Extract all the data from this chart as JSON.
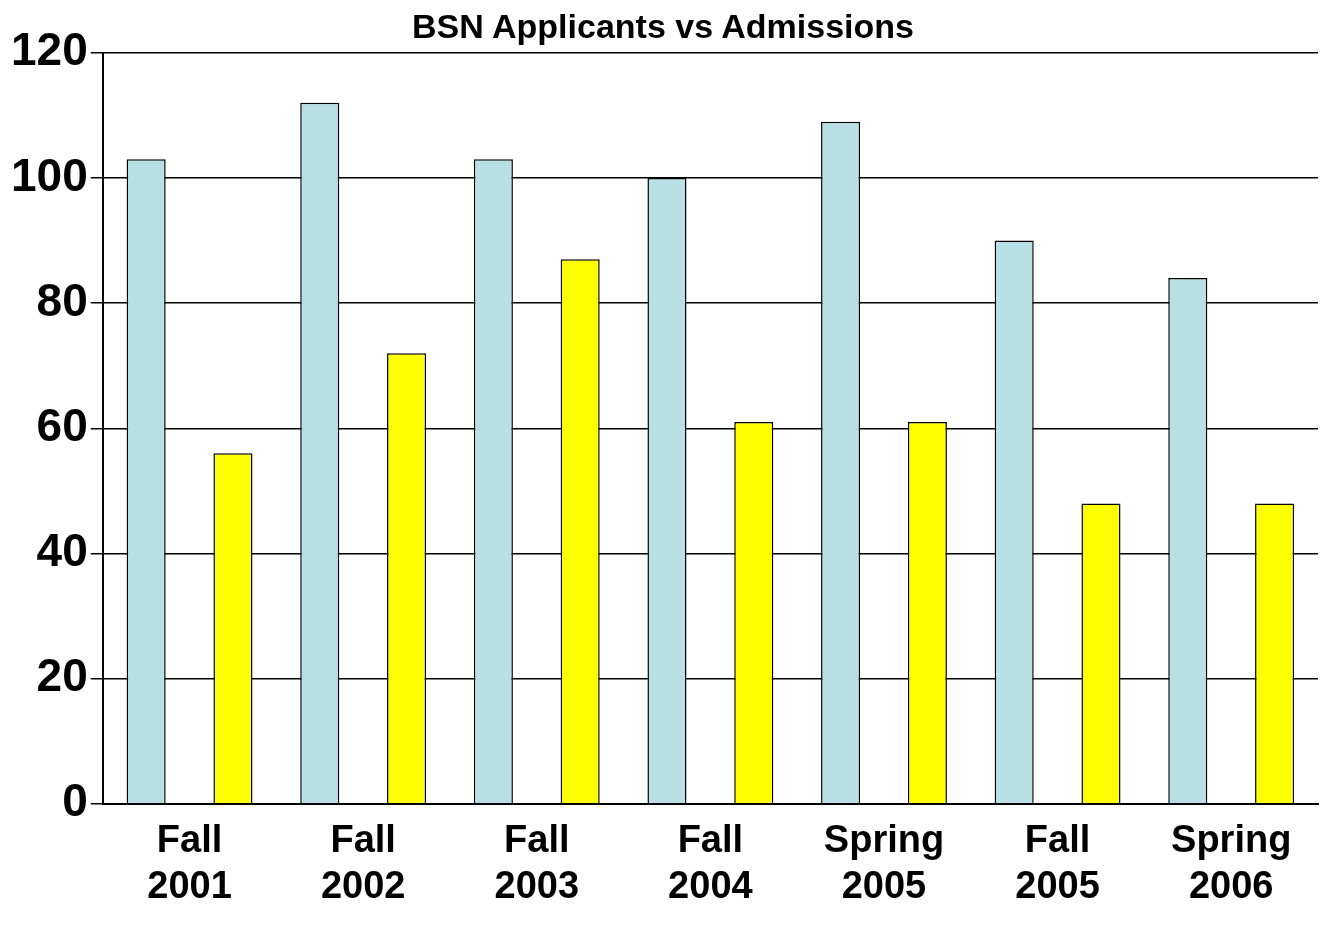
{
  "chart_data": {
    "type": "bar",
    "title": "BSN Applicants vs Admissions",
    "categories": [
      "Fall 2001",
      "Fall 2002",
      "Fall 2003",
      "Fall 2004",
      "Spring 2005",
      "Fall 2005",
      "Spring 2006"
    ],
    "series": [
      {
        "color": "#b8dfe3",
        "values": [
          103,
          112,
          103,
          100,
          109,
          90,
          84
        ]
      },
      {
        "color": "#ffff00",
        "values": [
          56,
          72,
          87,
          61,
          61,
          48,
          48
        ]
      }
    ],
    "ylim": [
      0,
      120
    ],
    "yticks": [
      0,
      20,
      40,
      60,
      80,
      100,
      120
    ],
    "grid": "y",
    "legend": false
  }
}
